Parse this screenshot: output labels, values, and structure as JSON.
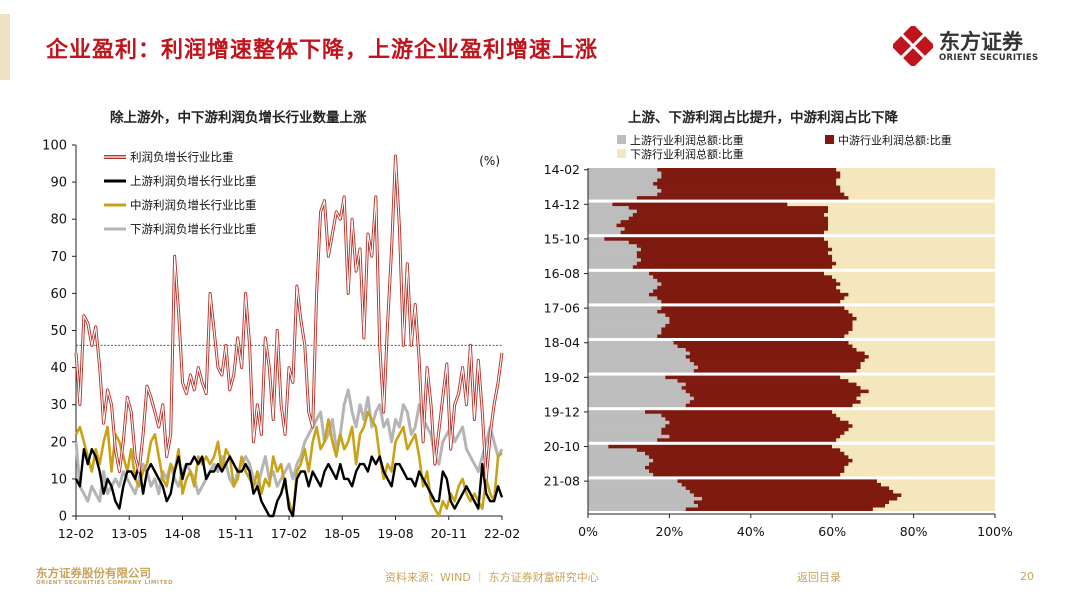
{
  "header": {
    "title": "企业盈利：利润增速整体下降，上游企业盈利增速上涨",
    "logo_text": "东方证券",
    "logo_subtext": "ORIENT SECURITIES"
  },
  "footer": {
    "company": "东方证券股份有限公司",
    "company_en": "ORIENT SECURITIES COMPANY LIMITED",
    "source": "资料来源：WIND ｜ 东方证券财富研究中心",
    "back_link": "返回目录",
    "page_number": "20"
  },
  "colors": {
    "title_red": "#c0141c",
    "total_line": "#b8322a",
    "upstream_line": "#000000",
    "midstream_line": "#c9a217",
    "downstream_line": "#b5b5b5",
    "upstream_bar": "#bdbdbd",
    "midstream_bar": "#7f1a10",
    "downstream_bar": "#f5e7bd",
    "footer_gold": "#c9a25c"
  },
  "chart_data": [
    {
      "type": "line",
      "title": "除上游外，中下游利润负增长行业数量上涨",
      "unit_label": "(%)",
      "xlabel": "",
      "ylabel": "",
      "ylim": [
        0,
        100
      ],
      "yticks": [
        0,
        10,
        20,
        30,
        40,
        50,
        60,
        70,
        80,
        90,
        100
      ],
      "x_tick_labels": [
        "12-02",
        "13-05",
        "14-08",
        "15-11",
        "17-02",
        "18-05",
        "19-08",
        "20-11",
        "22-02"
      ],
      "x_start": "2012-02",
      "x_end": "2022-02",
      "reference_line": 46,
      "legend_position": "top-left",
      "series": [
        {
          "name": "利润负增长行业比重",
          "values": [
            44,
            30,
            54,
            52,
            46,
            51,
            40,
            25,
            34,
            30,
            18,
            12,
            20,
            32,
            28,
            16,
            12,
            22,
            35,
            32,
            28,
            24,
            30,
            16,
            22,
            70,
            55,
            36,
            33,
            38,
            34,
            40,
            36,
            33,
            60,
            50,
            40,
            38,
            46,
            34,
            38,
            48,
            40,
            60,
            46,
            20,
            30,
            22,
            48,
            40,
            26,
            50,
            30,
            22,
            40,
            36,
            62,
            53,
            46,
            28,
            24,
            60,
            82,
            85,
            70,
            76,
            82,
            80,
            86,
            60,
            80,
            66,
            72,
            48,
            76,
            70,
            86,
            46,
            28,
            52,
            72,
            97,
            78,
            46,
            68,
            46,
            57,
            42,
            20,
            40,
            30,
            14,
            23,
            32,
            41,
            18,
            30,
            33,
            40,
            30,
            46,
            26,
            42,
            28,
            10,
            22,
            30,
            36,
            44
          ]
        },
        {
          "name": "上游利润负增长行业比重",
          "values": [
            10,
            8,
            18,
            14,
            18,
            16,
            12,
            6,
            10,
            8,
            4,
            2,
            8,
            12,
            12,
            10,
            14,
            6,
            12,
            14,
            12,
            10,
            8,
            4,
            6,
            12,
            16,
            10,
            14,
            14,
            16,
            14,
            16,
            10,
            12,
            12,
            14,
            12,
            14,
            16,
            14,
            12,
            12,
            14,
            12,
            6,
            8,
            4,
            2,
            0,
            0,
            4,
            6,
            10,
            2,
            0,
            10,
            12,
            12,
            8,
            12,
            10,
            8,
            12,
            14,
            12,
            10,
            14,
            10,
            10,
            8,
            12,
            14,
            14,
            12,
            16,
            14,
            16,
            12,
            10,
            8,
            14,
            14,
            12,
            10,
            10,
            8,
            12,
            10,
            8,
            6,
            4,
            4,
            12,
            10,
            4,
            2,
            4,
            6,
            8,
            6,
            4,
            2,
            14,
            6,
            4,
            4,
            8,
            5
          ]
        },
        {
          "name": "中游利润负增长行业比重",
          "values": [
            22,
            24,
            20,
            16,
            12,
            18,
            14,
            20,
            24,
            12,
            22,
            20,
            16,
            12,
            18,
            10,
            8,
            12,
            14,
            20,
            22,
            16,
            10,
            8,
            14,
            12,
            18,
            6,
            10,
            12,
            8,
            16,
            14,
            16,
            14,
            16,
            20,
            12,
            18,
            16,
            8,
            10,
            16,
            12,
            10,
            8,
            12,
            6,
            10,
            8,
            16,
            12,
            14,
            8,
            4,
            0,
            12,
            14,
            18,
            12,
            20,
            24,
            18,
            20,
            26,
            20,
            16,
            22,
            18,
            20,
            24,
            14,
            22,
            24,
            28,
            26,
            24,
            16,
            10,
            14,
            12,
            20,
            22,
            24,
            18,
            20,
            22,
            16,
            8,
            12,
            4,
            2,
            0,
            4,
            2,
            6,
            4,
            8,
            10,
            6,
            4,
            6,
            4,
            2,
            10,
            6,
            4,
            16,
            17
          ]
        },
        {
          "name": "下游利润负增长行业比重",
          "values": [
            20,
            8,
            6,
            4,
            8,
            6,
            4,
            12,
            6,
            8,
            10,
            8,
            12,
            10,
            8,
            6,
            10,
            14,
            12,
            8,
            10,
            6,
            12,
            10,
            14,
            10,
            8,
            12,
            14,
            12,
            10,
            6,
            8,
            10,
            12,
            14,
            12,
            16,
            14,
            10,
            8,
            12,
            14,
            16,
            14,
            10,
            8,
            12,
            16,
            10,
            12,
            8,
            10,
            12,
            14,
            10,
            14,
            16,
            20,
            22,
            24,
            26,
            28,
            20,
            22,
            26,
            18,
            22,
            30,
            34,
            28,
            24,
            30,
            26,
            32,
            24,
            28,
            30,
            24,
            26,
            20,
            26,
            24,
            30,
            28,
            22,
            24,
            30,
            26,
            24,
            22,
            16,
            14,
            20,
            22,
            24,
            20,
            22,
            24,
            18,
            16,
            14,
            12,
            16,
            20,
            24,
            20,
            16,
            18
          ]
        }
      ]
    },
    {
      "type": "bar",
      "orientation": "horizontal-stacked-100",
      "title": "上游、下游利润占比提升，中游利润占比下降",
      "xlim": [
        0,
        1
      ],
      "x_tick_labels": [
        "0%",
        "20%",
        "40%",
        "60%",
        "80%",
        "100%"
      ],
      "x_ticks": [
        0,
        0.2,
        0.4,
        0.6,
        0.8,
        1.0
      ],
      "category_tick_labels": [
        "14-02",
        "14-12",
        "15-10",
        "16-08",
        "17-06",
        "18-04",
        "19-02",
        "19-12",
        "20-10",
        "21-08"
      ],
      "legend_position": "top",
      "series_names": [
        "上游行业利润总额:比重",
        "中游行业利润总额:比重",
        "下游行业利润总额:比重"
      ],
      "groups": [
        {
          "upstream": [
            0.17,
            0.18,
            0.18,
            0.17,
            0.16,
            0.17,
            0.18,
            0.17,
            0.12
          ],
          "midstream_end": [
            0.61,
            0.62,
            0.62,
            0.61,
            0.61,
            0.62,
            0.62,
            0.63,
            0.64
          ]
        },
        {
          "upstream": [
            0.06,
            0.1,
            0.12,
            0.11,
            0.1,
            0.08,
            0.07,
            0.09,
            0.08
          ],
          "midstream_end": [
            0.49,
            0.59,
            0.59,
            0.58,
            0.59,
            0.59,
            0.59,
            0.59,
            0.58
          ]
        },
        {
          "upstream": [
            0.04,
            0.1,
            0.12,
            0.13,
            0.12,
            0.12,
            0.13,
            0.12,
            0.11
          ],
          "midstream_end": [
            0.58,
            0.59,
            0.59,
            0.6,
            0.59,
            0.6,
            0.6,
            0.61,
            0.6
          ]
        },
        {
          "upstream": [
            0.15,
            0.16,
            0.17,
            0.18,
            0.17,
            0.16,
            0.15,
            0.17,
            0.18
          ],
          "midstream_end": [
            0.58,
            0.6,
            0.61,
            0.62,
            0.61,
            0.62,
            0.64,
            0.63,
            0.62
          ]
        },
        {
          "upstream": [
            0.18,
            0.17,
            0.19,
            0.2,
            0.2,
            0.19,
            0.18,
            0.18,
            0.17
          ],
          "midstream_end": [
            0.63,
            0.64,
            0.65,
            0.66,
            0.65,
            0.65,
            0.65,
            0.64,
            0.63
          ]
        },
        {
          "upstream": [
            0.21,
            0.22,
            0.24,
            0.25,
            0.24,
            0.25,
            0.26,
            0.27,
            0.26
          ],
          "midstream_end": [
            0.64,
            0.65,
            0.66,
            0.68,
            0.69,
            0.68,
            0.67,
            0.67,
            0.66
          ]
        },
        {
          "upstream": [
            0.19,
            0.22,
            0.24,
            0.23,
            0.24,
            0.25,
            0.26,
            0.25,
            0.24
          ],
          "midstream_end": [
            0.62,
            0.64,
            0.66,
            0.67,
            0.69,
            0.67,
            0.66,
            0.67,
            0.65
          ]
        },
        {
          "upstream": [
            0.14,
            0.18,
            0.19,
            0.2,
            0.19,
            0.18,
            0.18,
            0.2,
            0.17
          ],
          "midstream_end": [
            0.6,
            0.61,
            0.62,
            0.64,
            0.65,
            0.64,
            0.63,
            0.62,
            0.61
          ]
        },
        {
          "upstream": [
            0.05,
            0.12,
            0.14,
            0.15,
            0.16,
            0.15,
            0.14,
            0.15,
            0.16
          ],
          "midstream_end": [
            0.6,
            0.62,
            0.63,
            0.64,
            0.65,
            0.64,
            0.63,
            0.63,
            0.62
          ]
        },
        {
          "upstream": [
            0.22,
            0.23,
            0.24,
            0.25,
            0.26,
            0.28,
            0.26,
            0.27,
            0.24
          ],
          "midstream_end": [
            0.71,
            0.72,
            0.74,
            0.75,
            0.77,
            0.76,
            0.74,
            0.73,
            0.7
          ]
        }
      ]
    }
  ]
}
